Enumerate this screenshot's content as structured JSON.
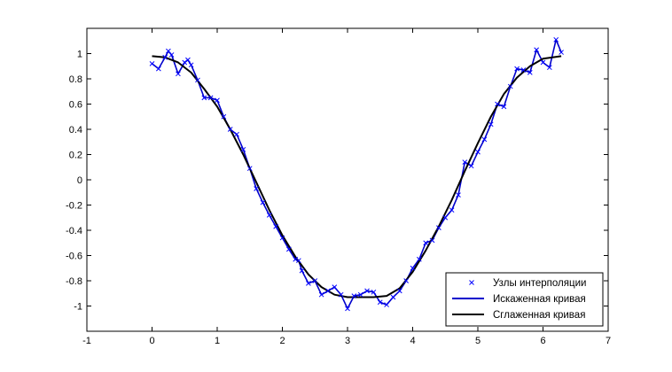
{
  "chart_data": {
    "type": "line",
    "xlim": [
      -1,
      7
    ],
    "ylim": [
      -1.2,
      1.2
    ],
    "xticks": [
      -1,
      0,
      1,
      2,
      3,
      4,
      5,
      6,
      7
    ],
    "yticks": [
      -1,
      -0.8,
      -0.6,
      -0.4,
      -0.2,
      0,
      0.2,
      0.4,
      0.6,
      0.8,
      1
    ],
    "ytick_labels": [
      "-1",
      "-0.8",
      "-0.6",
      "-0.4",
      "-0.2",
      "0",
      "0.2",
      "0.4",
      "0.6",
      "0.8",
      "1"
    ],
    "xtick_labels": [
      "-1",
      "0",
      "1",
      "2",
      "3",
      "4",
      "5",
      "6",
      "7"
    ],
    "grid": false,
    "legend_position": "bottom-right",
    "colors": {
      "markers": "#0000ff",
      "distorted": "#0000cc",
      "smoothed": "#000000"
    },
    "series": [
      {
        "name": "Узлы интерполяции",
        "style": "markers",
        "points": [
          [
            0.0,
            0.92
          ],
          [
            0.1,
            0.88
          ],
          [
            0.2,
            0.97
          ],
          [
            0.25,
            1.02
          ],
          [
            0.3,
            0.99
          ],
          [
            0.4,
            0.84
          ],
          [
            0.5,
            0.93
          ],
          [
            0.55,
            0.95
          ],
          [
            0.6,
            0.91
          ],
          [
            0.7,
            0.79
          ],
          [
            0.8,
            0.65
          ],
          [
            0.9,
            0.65
          ],
          [
            1.0,
            0.63
          ],
          [
            1.1,
            0.5
          ],
          [
            1.2,
            0.4
          ],
          [
            1.3,
            0.36
          ],
          [
            1.4,
            0.24
          ],
          [
            1.5,
            0.09
          ],
          [
            1.6,
            -0.07
          ],
          [
            1.7,
            -0.18
          ],
          [
            1.8,
            -0.28
          ],
          [
            1.9,
            -0.37
          ],
          [
            2.0,
            -0.46
          ],
          [
            2.1,
            -0.55
          ],
          [
            2.2,
            -0.63
          ],
          [
            2.25,
            -0.64
          ],
          [
            2.3,
            -0.72
          ],
          [
            2.4,
            -0.82
          ],
          [
            2.5,
            -0.8
          ],
          [
            2.6,
            -0.91
          ],
          [
            2.7,
            -0.88
          ],
          [
            2.8,
            -0.85
          ],
          [
            2.9,
            -0.91
          ],
          [
            3.0,
            -1.02
          ],
          [
            3.1,
            -0.92
          ],
          [
            3.2,
            -0.91
          ],
          [
            3.3,
            -0.88
          ],
          [
            3.4,
            -0.89
          ],
          [
            3.5,
            -0.97
          ],
          [
            3.6,
            -0.99
          ],
          [
            3.7,
            -0.93
          ],
          [
            3.8,
            -0.88
          ],
          [
            3.9,
            -0.8
          ],
          [
            4.0,
            -0.7
          ],
          [
            4.1,
            -0.63
          ],
          [
            4.2,
            -0.5
          ],
          [
            4.3,
            -0.48
          ],
          [
            4.4,
            -0.38
          ],
          [
            4.5,
            -0.3
          ],
          [
            4.6,
            -0.24
          ],
          [
            4.7,
            -0.12
          ],
          [
            4.8,
            0.14
          ],
          [
            4.9,
            0.11
          ],
          [
            5.0,
            0.22
          ],
          [
            5.1,
            0.32
          ],
          [
            5.2,
            0.44
          ],
          [
            5.3,
            0.6
          ],
          [
            5.4,
            0.58
          ],
          [
            5.5,
            0.74
          ],
          [
            5.6,
            0.88
          ],
          [
            5.7,
            0.87
          ],
          [
            5.8,
            0.85
          ],
          [
            5.9,
            1.03
          ],
          [
            6.0,
            0.93
          ],
          [
            6.1,
            0.89
          ],
          [
            6.2,
            1.11
          ],
          [
            6.28,
            1.01
          ]
        ]
      },
      {
        "name": "Искаженная кривая",
        "style": "line",
        "points": [
          [
            0.0,
            0.92
          ],
          [
            0.1,
            0.88
          ],
          [
            0.2,
            0.97
          ],
          [
            0.25,
            1.02
          ],
          [
            0.3,
            0.99
          ],
          [
            0.4,
            0.84
          ],
          [
            0.5,
            0.93
          ],
          [
            0.55,
            0.95
          ],
          [
            0.6,
            0.91
          ],
          [
            0.7,
            0.79
          ],
          [
            0.8,
            0.65
          ],
          [
            0.9,
            0.65
          ],
          [
            1.0,
            0.63
          ],
          [
            1.1,
            0.5
          ],
          [
            1.2,
            0.4
          ],
          [
            1.3,
            0.36
          ],
          [
            1.4,
            0.24
          ],
          [
            1.5,
            0.09
          ],
          [
            1.6,
            -0.07
          ],
          [
            1.7,
            -0.18
          ],
          [
            1.8,
            -0.28
          ],
          [
            1.9,
            -0.37
          ],
          [
            2.0,
            -0.46
          ],
          [
            2.1,
            -0.55
          ],
          [
            2.2,
            -0.63
          ],
          [
            2.25,
            -0.64
          ],
          [
            2.3,
            -0.72
          ],
          [
            2.4,
            -0.82
          ],
          [
            2.5,
            -0.8
          ],
          [
            2.6,
            -0.91
          ],
          [
            2.7,
            -0.88
          ],
          [
            2.8,
            -0.85
          ],
          [
            2.9,
            -0.91
          ],
          [
            3.0,
            -1.02
          ],
          [
            3.1,
            -0.92
          ],
          [
            3.2,
            -0.91
          ],
          [
            3.3,
            -0.88
          ],
          [
            3.4,
            -0.89
          ],
          [
            3.5,
            -0.97
          ],
          [
            3.6,
            -0.99
          ],
          [
            3.7,
            -0.93
          ],
          [
            3.8,
            -0.88
          ],
          [
            3.9,
            -0.8
          ],
          [
            4.0,
            -0.7
          ],
          [
            4.1,
            -0.63
          ],
          [
            4.2,
            -0.5
          ],
          [
            4.3,
            -0.48
          ],
          [
            4.4,
            -0.38
          ],
          [
            4.5,
            -0.3
          ],
          [
            4.6,
            -0.24
          ],
          [
            4.7,
            -0.12
          ],
          [
            4.8,
            0.14
          ],
          [
            4.9,
            0.11
          ],
          [
            5.0,
            0.22
          ],
          [
            5.1,
            0.32
          ],
          [
            5.2,
            0.44
          ],
          [
            5.3,
            0.6
          ],
          [
            5.4,
            0.58
          ],
          [
            5.5,
            0.74
          ],
          [
            5.6,
            0.88
          ],
          [
            5.7,
            0.87
          ],
          [
            5.8,
            0.85
          ],
          [
            5.9,
            1.03
          ],
          [
            6.0,
            0.93
          ],
          [
            6.1,
            0.89
          ],
          [
            6.2,
            1.11
          ],
          [
            6.28,
            1.01
          ]
        ]
      },
      {
        "name": "Сглаженная кривая",
        "style": "line",
        "points": [
          [
            0.0,
            0.98
          ],
          [
            0.2,
            0.97
          ],
          [
            0.4,
            0.93
          ],
          [
            0.6,
            0.85
          ],
          [
            0.8,
            0.72
          ],
          [
            1.0,
            0.58
          ],
          [
            1.2,
            0.4
          ],
          [
            1.4,
            0.2
          ],
          [
            1.6,
            -0.02
          ],
          [
            1.8,
            -0.24
          ],
          [
            2.0,
            -0.44
          ],
          [
            2.2,
            -0.61
          ],
          [
            2.4,
            -0.75
          ],
          [
            2.6,
            -0.85
          ],
          [
            2.8,
            -0.91
          ],
          [
            3.0,
            -0.93
          ],
          [
            3.2,
            -0.93
          ],
          [
            3.4,
            -0.93
          ],
          [
            3.6,
            -0.92
          ],
          [
            3.8,
            -0.86
          ],
          [
            4.0,
            -0.73
          ],
          [
            4.2,
            -0.56
          ],
          [
            4.4,
            -0.37
          ],
          [
            4.6,
            -0.16
          ],
          [
            4.8,
            0.07
          ],
          [
            5.0,
            0.29
          ],
          [
            5.2,
            0.5
          ],
          [
            5.4,
            0.68
          ],
          [
            5.6,
            0.81
          ],
          [
            5.8,
            0.9
          ],
          [
            6.0,
            0.96
          ],
          [
            6.28,
            0.98
          ]
        ]
      }
    ]
  }
}
